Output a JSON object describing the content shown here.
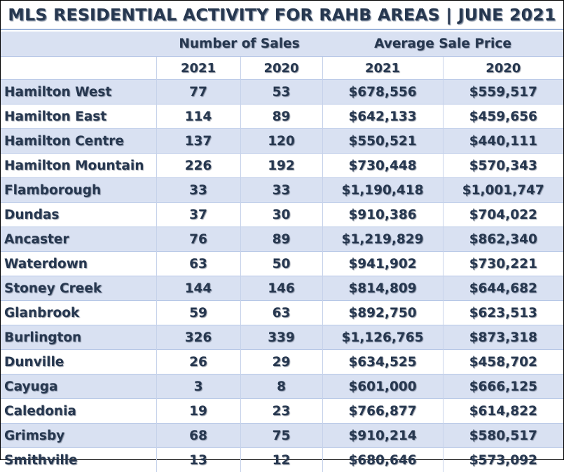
{
  "title": "MLS RESIDENTIAL ACTIVITY FOR RAHB AREAS | JUNE 2021",
  "header": {
    "group_sales": "Number of Sales",
    "group_price": "Average Sale Price",
    "years": [
      "2021",
      "2020",
      "2021",
      "2020"
    ]
  },
  "rows": [
    {
      "area": "Hamilton West",
      "sales_2021": "77",
      "sales_2020": "53",
      "price_2021": "$678,556",
      "price_2020": "$559,517"
    },
    {
      "area": "Hamilton East",
      "sales_2021": "114",
      "sales_2020": "89",
      "price_2021": "$642,133",
      "price_2020": "$459,656"
    },
    {
      "area": "Hamilton Centre",
      "sales_2021": "137",
      "sales_2020": "120",
      "price_2021": "$550,521",
      "price_2020": "$440,111"
    },
    {
      "area": "Hamilton Mountain",
      "sales_2021": "226",
      "sales_2020": "192",
      "price_2021": "$730,448",
      "price_2020": "$570,343"
    },
    {
      "area": "Flamborough",
      "sales_2021": "33",
      "sales_2020": "33",
      "price_2021": "$1,190,418",
      "price_2020": "$1,001,747"
    },
    {
      "area": "Dundas",
      "sales_2021": "37",
      "sales_2020": "30",
      "price_2021": "$910,386",
      "price_2020": "$704,022"
    },
    {
      "area": "Ancaster",
      "sales_2021": "76",
      "sales_2020": "89",
      "price_2021": "$1,219,829",
      "price_2020": "$862,340"
    },
    {
      "area": "Waterdown",
      "sales_2021": "63",
      "sales_2020": "50",
      "price_2021": "$941,902",
      "price_2020": "$730,221"
    },
    {
      "area": "Stoney Creek",
      "sales_2021": "144",
      "sales_2020": "146",
      "price_2021": "$814,809",
      "price_2020": "$644,682"
    },
    {
      "area": "Glanbrook",
      "sales_2021": "59",
      "sales_2020": "63",
      "price_2021": "$892,750",
      "price_2020": "$623,513"
    },
    {
      "area": "Burlington",
      "sales_2021": "326",
      "sales_2020": "339",
      "price_2021": "$1,126,765",
      "price_2020": "$873,318"
    },
    {
      "area": "Dunville",
      "sales_2021": "26",
      "sales_2020": "29",
      "price_2021": "$634,525",
      "price_2020": "$458,702"
    },
    {
      "area": "Cayuga",
      "sales_2021": "3",
      "sales_2020": "8",
      "price_2021": "$601,000",
      "price_2020": "$666,125"
    },
    {
      "area": "Caledonia",
      "sales_2021": "19",
      "sales_2020": "23",
      "price_2021": "$766,877",
      "price_2020": "$614,822"
    },
    {
      "area": "Grimsby",
      "sales_2021": "68",
      "sales_2020": "75",
      "price_2021": "$910,214",
      "price_2020": "$580,517"
    },
    {
      "area": "Smithville",
      "sales_2021": "13",
      "sales_2020": "12",
      "price_2021": "$680,646",
      "price_2020": "$573,092"
    }
  ],
  "colors": {
    "text": "#26374f",
    "band": "#d9e1f2",
    "rule": "#9bb3da"
  }
}
